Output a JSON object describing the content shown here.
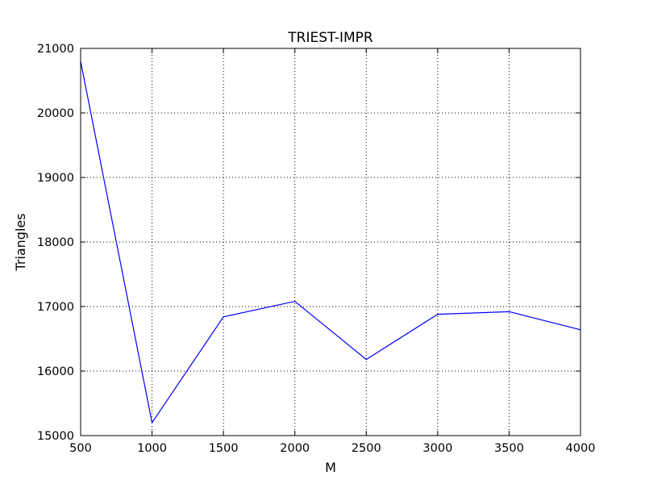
{
  "chart_data": {
    "type": "line",
    "title": "TRIEST-IMPR",
    "xlabel": "M",
    "ylabel": "Triangles",
    "xlim": [
      500,
      4000
    ],
    "ylim": [
      15000,
      21000
    ],
    "xticks": [
      500,
      1000,
      1500,
      2000,
      2500,
      3000,
      3500,
      4000
    ],
    "yticks": [
      15000,
      16000,
      17000,
      18000,
      19000,
      20000,
      21000
    ],
    "grid": true,
    "series": [
      {
        "color": "#0000ff",
        "x": [
          500,
          1000,
          1500,
          2000,
          2500,
          3000,
          3500,
          4000
        ],
        "y": [
          20800,
          15200,
          16840,
          17080,
          16180,
          16880,
          16920,
          16640
        ]
      }
    ]
  }
}
